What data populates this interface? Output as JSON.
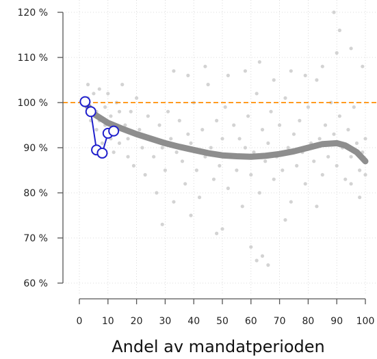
{
  "chart_data": {
    "type": "scatter",
    "title": "",
    "xlabel": "Andel av mandatperioden",
    "ylabel": "",
    "xlim": [
      0,
      100
    ],
    "ylim": [
      58,
      121
    ],
    "x_ticks": [
      0,
      10,
      20,
      30,
      40,
      50,
      60,
      70,
      80,
      90,
      100
    ],
    "x_tick_labels": [
      "0",
      "10",
      "20",
      "30",
      "40",
      "50",
      "60",
      "70",
      "80",
      "90",
      "100"
    ],
    "y_ticks": [
      60,
      70,
      80,
      90,
      100,
      110,
      120
    ],
    "y_tick_labels": [
      "60 %",
      "70 %",
      "80 %",
      "90 %",
      "100 %",
      "110 %",
      "120 %"
    ],
    "grid": true,
    "reference_line": {
      "y": 100,
      "color": "#ff8c00",
      "style": "dashed"
    },
    "trend": {
      "color": "#888888",
      "points": [
        [
          2,
          100
        ],
        [
          5,
          97.5
        ],
        [
          10,
          95.5
        ],
        [
          15,
          94.2
        ],
        [
          20,
          93
        ],
        [
          25,
          92
        ],
        [
          30,
          91
        ],
        [
          35,
          90.2
        ],
        [
          40,
          89.5
        ],
        [
          45,
          88.8
        ],
        [
          50,
          88.3
        ],
        [
          55,
          88.1
        ],
        [
          60,
          88
        ],
        [
          65,
          88.2
        ],
        [
          70,
          88.6
        ],
        [
          75,
          89.2
        ],
        [
          80,
          90
        ],
        [
          85,
          90.8
        ],
        [
          90,
          91
        ],
        [
          93,
          90.5
        ],
        [
          97,
          89
        ],
        [
          100,
          87
        ]
      ]
    },
    "highlight_series": {
      "color": "#1f1fcc",
      "points": [
        [
          2,
          100.2
        ],
        [
          4,
          98
        ],
        [
          6,
          89.5
        ],
        [
          8,
          88.8
        ],
        [
          10,
          93.2
        ],
        [
          12,
          93.7
        ]
      ]
    },
    "background_points": {
      "color": "#d3d3d3",
      "points": [
        [
          3,
          104
        ],
        [
          3,
          101
        ],
        [
          4,
          96
        ],
        [
          4,
          99
        ],
        [
          5,
          102
        ],
        [
          6,
          98
        ],
        [
          6,
          94
        ],
        [
          7,
          103
        ],
        [
          7,
          96
        ],
        [
          8,
          91
        ],
        [
          9,
          99
        ],
        [
          9,
          95
        ],
        [
          10,
          102
        ],
        [
          11,
          97
        ],
        [
          11,
          92
        ],
        [
          12,
          89
        ],
        [
          13,
          100
        ],
        [
          13,
          95
        ],
        [
          14,
          98
        ],
        [
          14,
          91
        ],
        [
          15,
          104
        ],
        [
          16,
          95
        ],
        [
          17,
          92
        ],
        [
          17,
          88
        ],
        [
          18,
          98
        ],
        [
          19,
          86
        ],
        [
          20,
          101
        ],
        [
          21,
          94
        ],
        [
          22,
          90
        ],
        [
          23,
          84
        ],
        [
          24,
          97
        ],
        [
          25,
          92
        ],
        [
          26,
          88
        ],
        [
          27,
          80
        ],
        [
          28,
          95
        ],
        [
          29,
          90
        ],
        [
          30,
          85
        ],
        [
          31,
          98
        ],
        [
          32,
          92
        ],
        [
          33,
          78
        ],
        [
          34,
          89
        ],
        [
          35,
          96
        ],
        [
          36,
          87
        ],
        [
          37,
          82
        ],
        [
          38,
          93
        ],
        [
          39,
          91
        ],
        [
          40,
          100
        ],
        [
          41,
          85
        ],
        [
          42,
          79
        ],
        [
          43,
          94
        ],
        [
          44,
          88
        ],
        [
          45,
          104
        ],
        [
          46,
          90
        ],
        [
          47,
          83
        ],
        [
          48,
          96
        ],
        [
          49,
          86
        ],
        [
          50,
          92
        ],
        [
          51,
          99
        ],
        [
          52,
          81
        ],
        [
          53,
          88
        ],
        [
          54,
          95
        ],
        [
          55,
          85
        ],
        [
          56,
          92
        ],
        [
          57,
          77
        ],
        [
          58,
          90
        ],
        [
          59,
          97
        ],
        [
          60,
          84
        ],
        [
          61,
          89
        ],
        [
          62,
          102
        ],
        [
          63,
          80
        ],
        [
          64,
          94
        ],
        [
          65,
          87
        ],
        [
          66,
          91
        ],
        [
          67,
          98
        ],
        [
          68,
          83
        ],
        [
          69,
          88
        ],
        [
          70,
          95
        ],
        [
          71,
          85
        ],
        [
          72,
          101
        ],
        [
          73,
          90
        ],
        [
          74,
          78
        ],
        [
          75,
          93
        ],
        [
          76,
          86
        ],
        [
          77,
          96
        ],
        [
          78,
          89
        ],
        [
          79,
          82
        ],
        [
          80,
          99
        ],
        [
          81,
          91
        ],
        [
          82,
          87
        ],
        [
          83,
          105
        ],
        [
          84,
          92
        ],
        [
          85,
          84
        ],
        [
          86,
          95
        ],
        [
          87,
          88
        ],
        [
          88,
          100
        ],
        [
          89,
          93
        ],
        [
          90,
          86
        ],
        [
          91,
          97
        ],
        [
          92,
          90
        ],
        [
          93,
          83
        ],
        [
          94,
          94
        ],
        [
          95,
          88
        ],
        [
          96,
          99
        ],
        [
          97,
          91
        ],
        [
          98,
          85
        ],
        [
          99,
          89
        ],
        [
          100,
          92
        ],
        [
          100,
          84
        ],
        [
          98,
          79
        ],
        [
          95,
          82
        ],
        [
          33,
          107
        ],
        [
          38,
          106
        ],
        [
          44,
          108
        ],
        [
          52,
          106
        ],
        [
          58,
          107
        ],
        [
          63,
          109
        ],
        [
          68,
          105
        ],
        [
          74,
          107
        ],
        [
          79,
          106
        ],
        [
          85,
          108
        ],
        [
          89,
          120
        ],
        [
          90,
          111
        ],
        [
          91,
          116
        ],
        [
          95,
          112
        ],
        [
          99,
          108
        ],
        [
          29,
          73
        ],
        [
          39,
          75
        ],
        [
          50,
          72
        ],
        [
          60,
          68
        ],
        [
          62,
          65
        ],
        [
          64,
          66
        ],
        [
          66,
          64
        ],
        [
          72,
          74
        ],
        [
          83,
          77
        ],
        [
          48,
          71
        ]
      ]
    }
  }
}
